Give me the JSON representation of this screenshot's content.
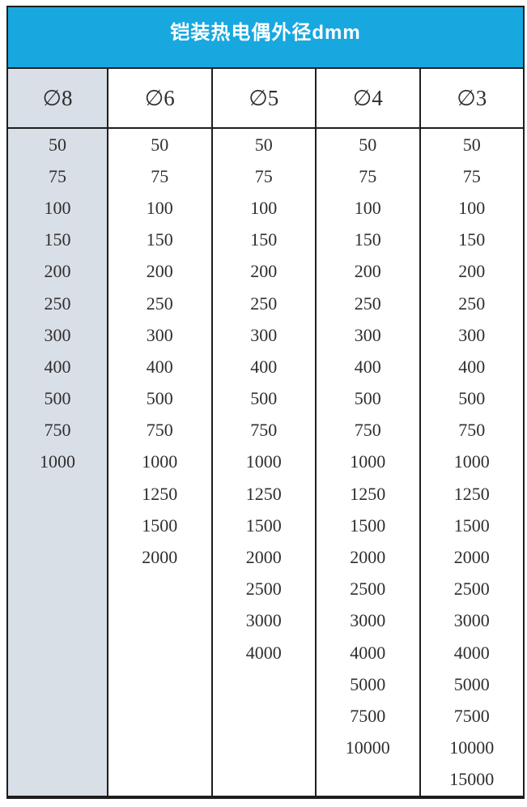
{
  "table": {
    "title": "铠装热电偶外径dmm",
    "columns": [
      {
        "header": "∅8",
        "values": [
          "50",
          "75",
          "100",
          "150",
          "200",
          "250",
          "300",
          "400",
          "500",
          "750",
          "1000"
        ]
      },
      {
        "header": "∅6",
        "values": [
          "50",
          "75",
          "100",
          "150",
          "200",
          "250",
          "300",
          "400",
          "500",
          "750",
          "1000",
          "1250",
          "1500",
          "2000"
        ]
      },
      {
        "header": "∅5",
        "values": [
          "50",
          "75",
          "100",
          "150",
          "200",
          "250",
          "300",
          "400",
          "500",
          "750",
          "1000",
          "1250",
          "1500",
          "2000",
          "2500",
          "3000",
          "4000"
        ]
      },
      {
        "header": "∅4",
        "values": [
          "50",
          "75",
          "100",
          "150",
          "200",
          "250",
          "300",
          "400",
          "500",
          "750",
          "1000",
          "1250",
          "1500",
          "2000",
          "2500",
          "3000",
          "4000",
          "5000",
          "7500",
          "10000"
        ]
      },
      {
        "header": "∅3",
        "values": [
          "50",
          "75",
          "100",
          "150",
          "200",
          "250",
          "300",
          "400",
          "500",
          "750",
          "1000",
          "1250",
          "1500",
          "2000",
          "2500",
          "3000",
          "4000",
          "5000",
          "7500",
          "10000",
          "15000"
        ]
      }
    ],
    "colors": {
      "title_background": "#18a8e0",
      "title_text": "#ffffff",
      "shaded_column": "#d9dfe7",
      "border": "#1e1e1e",
      "value_text": "#2e2e2e"
    }
  }
}
